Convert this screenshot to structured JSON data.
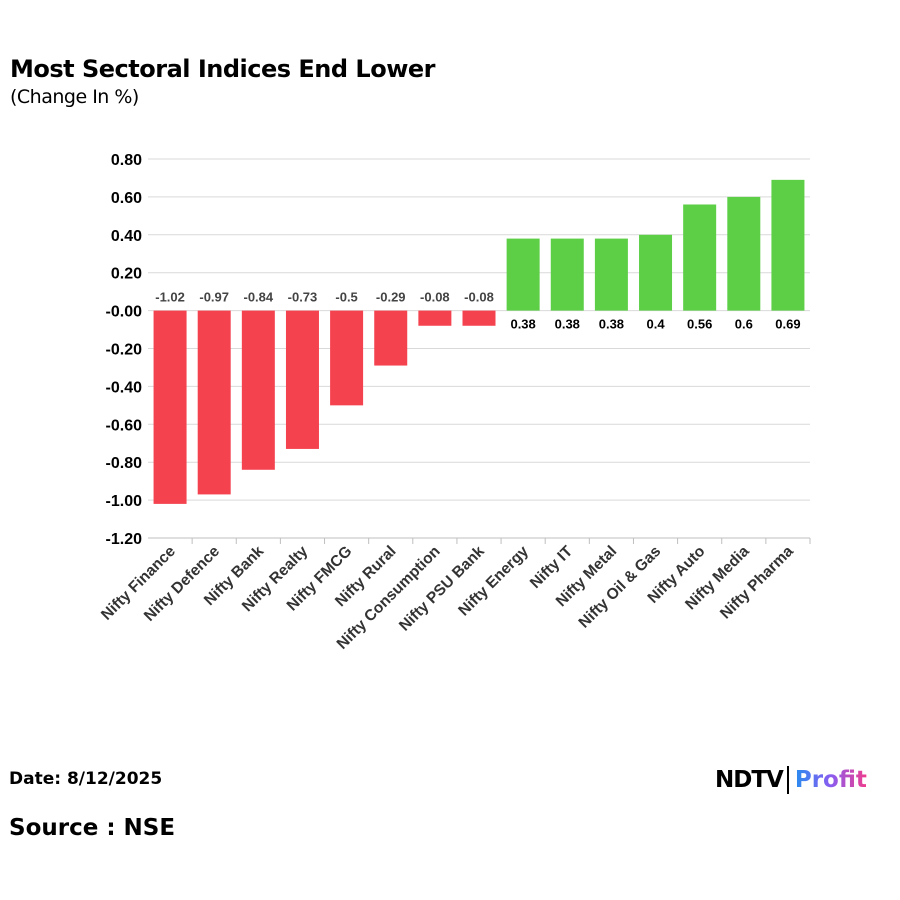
{
  "chart_data": {
    "type": "bar",
    "title": "Most Sectoral Indices End Lower",
    "subtitle": "(Change In %)",
    "categories": [
      "Nifty Finance",
      "Nifty Defence",
      "Nifty Bank",
      "Nifty Realty",
      "Nifty FMCG",
      "Nifty Rural",
      "Nifty Consumption",
      "Nifty PSU Bank",
      "Nifty Energy",
      "Nifty IT",
      "Nifty Metal",
      "Nifty Oil & Gas",
      "Nifty Auto",
      "Nifty Media",
      "Nifty Pharma"
    ],
    "values": [
      -1.02,
      -0.97,
      -0.84,
      -0.73,
      -0.5,
      -0.29,
      -0.08,
      -0.08,
      0.38,
      0.38,
      0.38,
      0.4,
      0.56,
      0.6,
      0.69
    ],
    "data_labels": [
      "-1.02",
      "-0.97",
      "-0.84",
      "-0.73",
      "-0.5",
      "-0.29",
      "-0.08",
      "-0.08",
      "0.38",
      "0.38",
      "0.38",
      "0.4",
      "0.56",
      "0.6",
      "0.69"
    ],
    "yticks": [
      "0.80",
      "0.60",
      "0.40",
      "0.20",
      "-0.00",
      "-0.20",
      "-0.40",
      "-0.60",
      "-0.80",
      "-1.00",
      "-1.20"
    ],
    "ylim": [
      -1.2,
      0.8
    ],
    "grid": true,
    "legend": "none",
    "colors": {
      "negative": "#f5424f",
      "positive": "#5ccf47"
    }
  },
  "footer": {
    "date": "Date: 8/12/2025",
    "source": "Source : NSE",
    "logo_text": "NDTV Profit"
  }
}
